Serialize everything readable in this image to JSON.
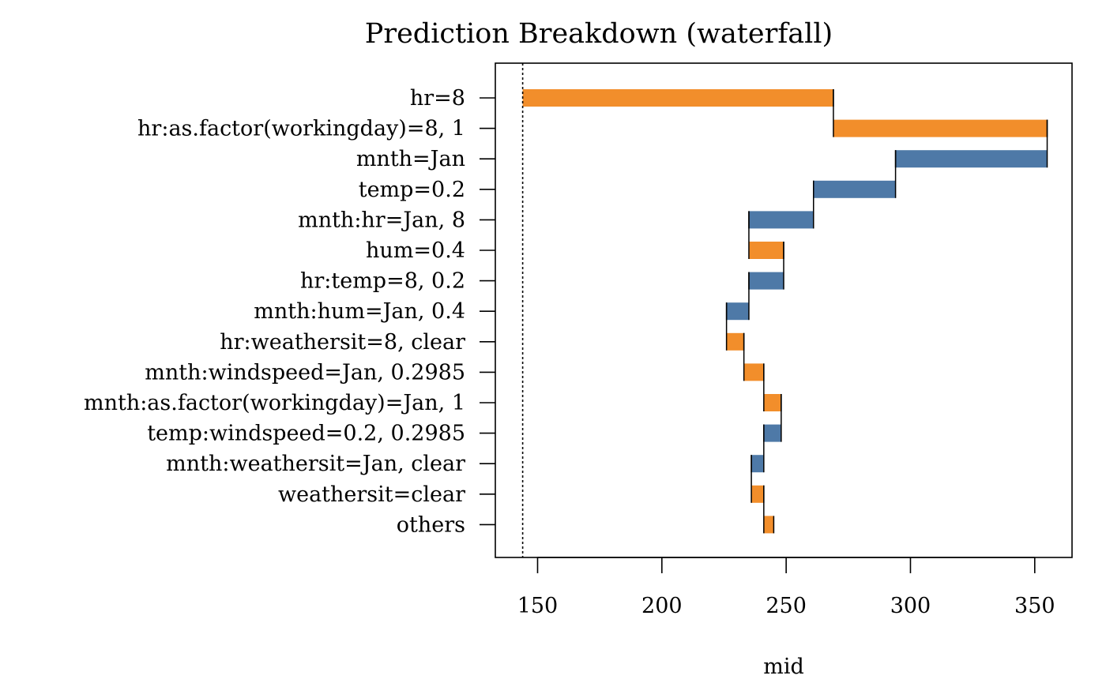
{
  "chart_data": {
    "type": "bar",
    "subtype": "waterfall",
    "title": "Prediction Breakdown (waterfall)",
    "xlabel": "mid",
    "ylabel": "",
    "xlim": [
      133,
      365
    ],
    "xticks": [
      150,
      200,
      250,
      300,
      350
    ],
    "baseline": 144,
    "colors": {
      "positive": "#F28E2B",
      "negative": "#4E79A7"
    },
    "bars": [
      {
        "label": "hr=8",
        "start": 144,
        "end": 269,
        "sign": "positive"
      },
      {
        "label": "hr:as.factor(workingday)=8, 1",
        "start": 269,
        "end": 355,
        "sign": "positive"
      },
      {
        "label": "mnth=Jan",
        "start": 355,
        "end": 294,
        "sign": "negative"
      },
      {
        "label": "temp=0.2",
        "start": 294,
        "end": 261,
        "sign": "negative"
      },
      {
        "label": "mnth:hr=Jan, 8",
        "start": 261,
        "end": 235,
        "sign": "negative"
      },
      {
        "label": "hum=0.4",
        "start": 235,
        "end": 249,
        "sign": "positive"
      },
      {
        "label": "hr:temp=8, 0.2",
        "start": 249,
        "end": 235,
        "sign": "negative"
      },
      {
        "label": "mnth:hum=Jan, 0.4",
        "start": 235,
        "end": 226,
        "sign": "negative"
      },
      {
        "label": "hr:weathersit=8, clear",
        "start": 226,
        "end": 233,
        "sign": "positive"
      },
      {
        "label": "mnth:windspeed=Jan, 0.2985",
        "start": 233,
        "end": 241,
        "sign": "positive"
      },
      {
        "label": "mnth:as.factor(workingday)=Jan, 1",
        "start": 241,
        "end": 248,
        "sign": "positive"
      },
      {
        "label": "temp:windspeed=0.2, 0.2985",
        "start": 248,
        "end": 241,
        "sign": "negative"
      },
      {
        "label": "mnth:weathersit=Jan, clear",
        "start": 241,
        "end": 236,
        "sign": "negative"
      },
      {
        "label": "weathersit=clear",
        "start": 236,
        "end": 241,
        "sign": "positive"
      },
      {
        "label": "others",
        "start": 241,
        "end": 245,
        "sign": "positive"
      }
    ]
  }
}
